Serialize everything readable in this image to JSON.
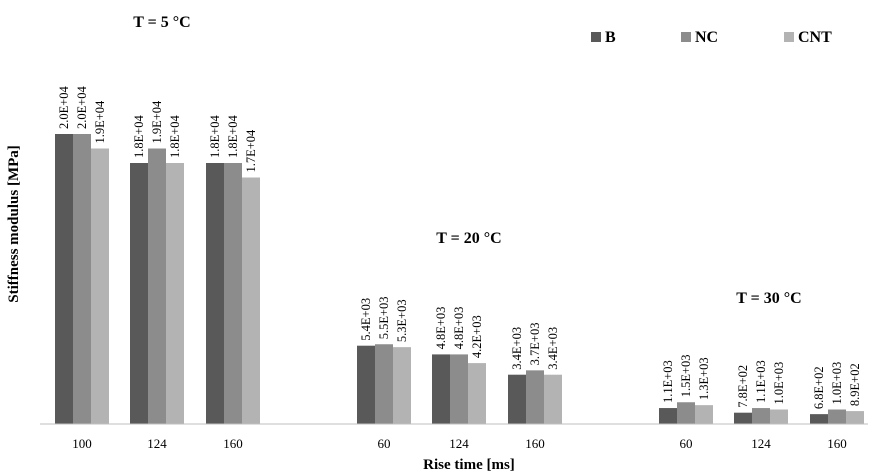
{
  "chart_data": {
    "type": "bar",
    "xlabel": "Rise time [ms]",
    "ylabel": "Stiffness modulus [MPa]",
    "ylim": [
      0,
      20000
    ],
    "grid": false,
    "legend_position": "top-right",
    "series": [
      {
        "name": "B",
        "color": "#595959"
      },
      {
        "name": "NC",
        "color": "#8c8c8c"
      },
      {
        "name": "CNT",
        "color": "#b3b3b3"
      }
    ],
    "groups": [
      {
        "title": "T = 5 °C",
        "categories": [
          "100",
          "124",
          "160"
        ],
        "values": [
          [
            20000,
            20000,
            19000
          ],
          [
            18000,
            19000,
            18000
          ],
          [
            18000,
            18000,
            17000
          ]
        ],
        "labels": [
          [
            "2.0E+04",
            "2.0E+04",
            "1.9E+04"
          ],
          [
            "1.8E+04",
            "1.9E+04",
            "1.8E+04"
          ],
          [
            "1.8E+04",
            "1.8E+04",
            "1.7E+04"
          ]
        ]
      },
      {
        "title": "T = 20 °C",
        "categories": [
          "60",
          "124",
          "160"
        ],
        "values": [
          [
            5400,
            5500,
            5300
          ],
          [
            4800,
            4800,
            4200
          ],
          [
            3400,
            3700,
            3400
          ]
        ],
        "labels": [
          [
            "5.4E+03",
            "5.5E+03",
            "5.3E+03"
          ],
          [
            "4.8E+03",
            "4.8E+03",
            "4.2E+03"
          ],
          [
            "3.4E+03",
            "3.7E+03",
            "3.4E+03"
          ]
        ]
      },
      {
        "title": "T = 30 °C",
        "categories": [
          "60",
          "124",
          "160"
        ],
        "values": [
          [
            1100,
            1500,
            1300
          ],
          [
            780,
            1100,
            1000
          ],
          [
            680,
            1000,
            890
          ]
        ],
        "labels": [
          [
            "1.1E+03",
            "1.5E+03",
            "1.3E+03"
          ],
          [
            "7.8E+02",
            "1.1E+03",
            "1.0E+03"
          ],
          [
            "6.8E+02",
            "1.0E+03",
            "8.9E+02"
          ]
        ]
      }
    ]
  }
}
